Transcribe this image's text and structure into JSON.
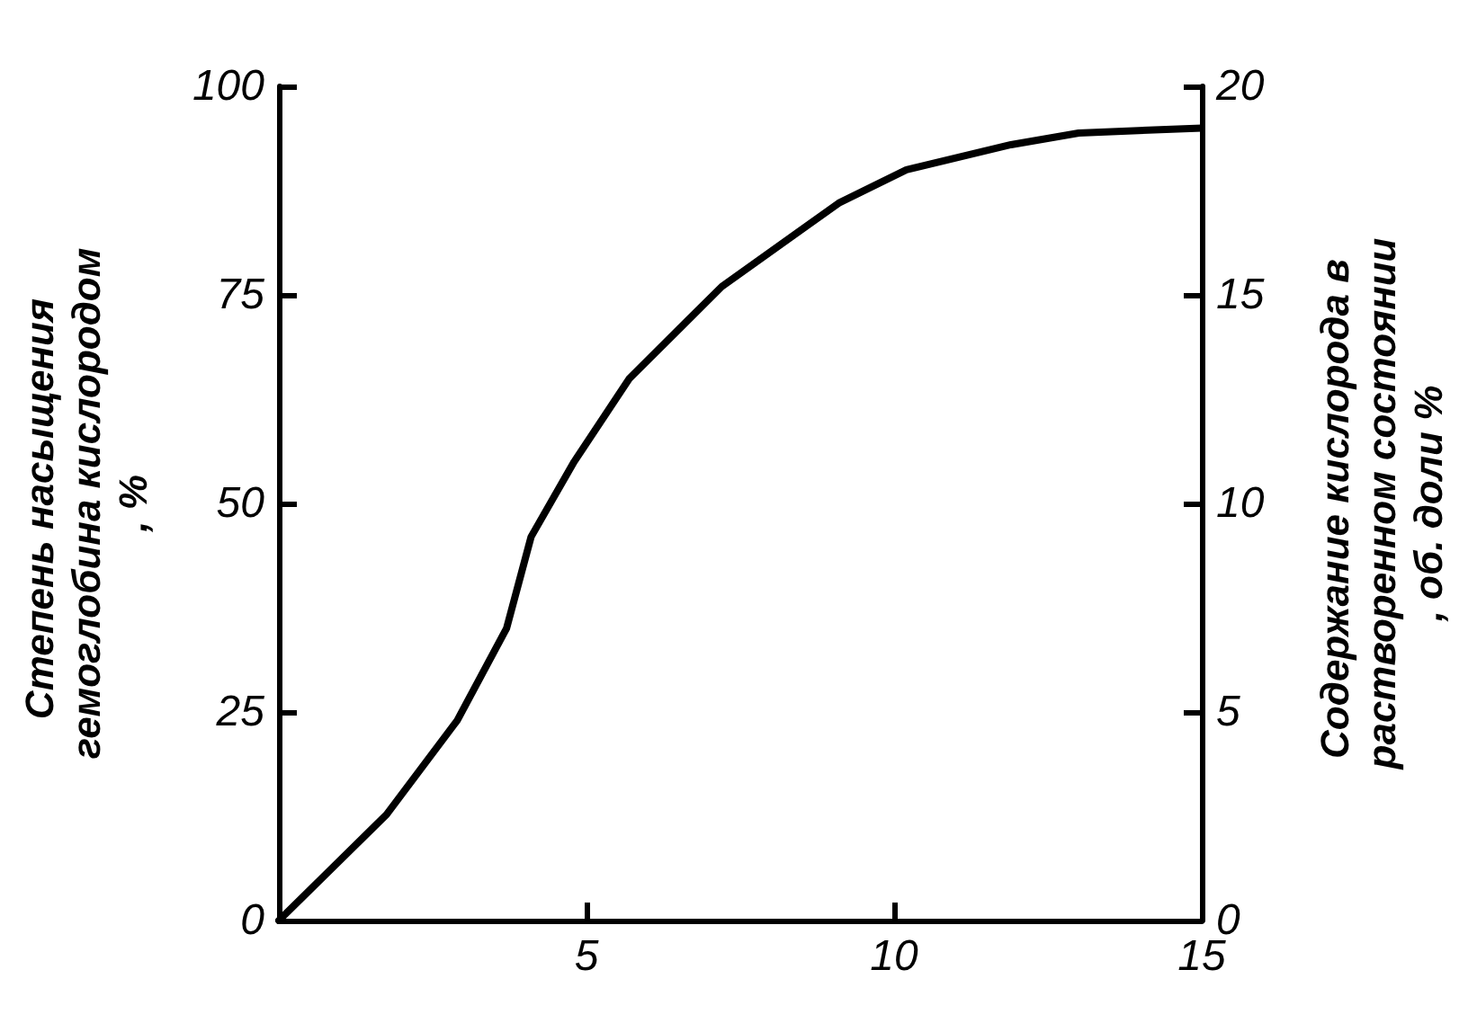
{
  "chart_data": {
    "type": "line",
    "ylabel": "Степень насыщения гемоглобина кислородом, %",
    "y2label": "Содержание кислорода в растворенном состоянии, об. доли %",
    "x": [
      0,
      1.75,
      2.9,
      3.7,
      4.1,
      4.8,
      5.7,
      7.2,
      9.1,
      10.2,
      11.9,
      13,
      15
    ],
    "series": [
      {
        "color": "#000000",
        "values": [
          0,
          12.7,
          24,
          35,
          46,
          55,
          65,
          76,
          86,
          90,
          93,
          94.4,
          95
        ]
      }
    ],
    "xlim": [
      0,
      15
    ],
    "xticks": [
      5,
      10,
      15
    ],
    "ylim": [
      0,
      100
    ],
    "yticks": [
      0,
      25,
      50,
      75,
      100
    ],
    "y2lim": [
      0,
      20
    ],
    "y2ticks": [
      0,
      5,
      10,
      15,
      20
    ],
    "grid": false,
    "marker": "none",
    "line_style": "solid"
  }
}
